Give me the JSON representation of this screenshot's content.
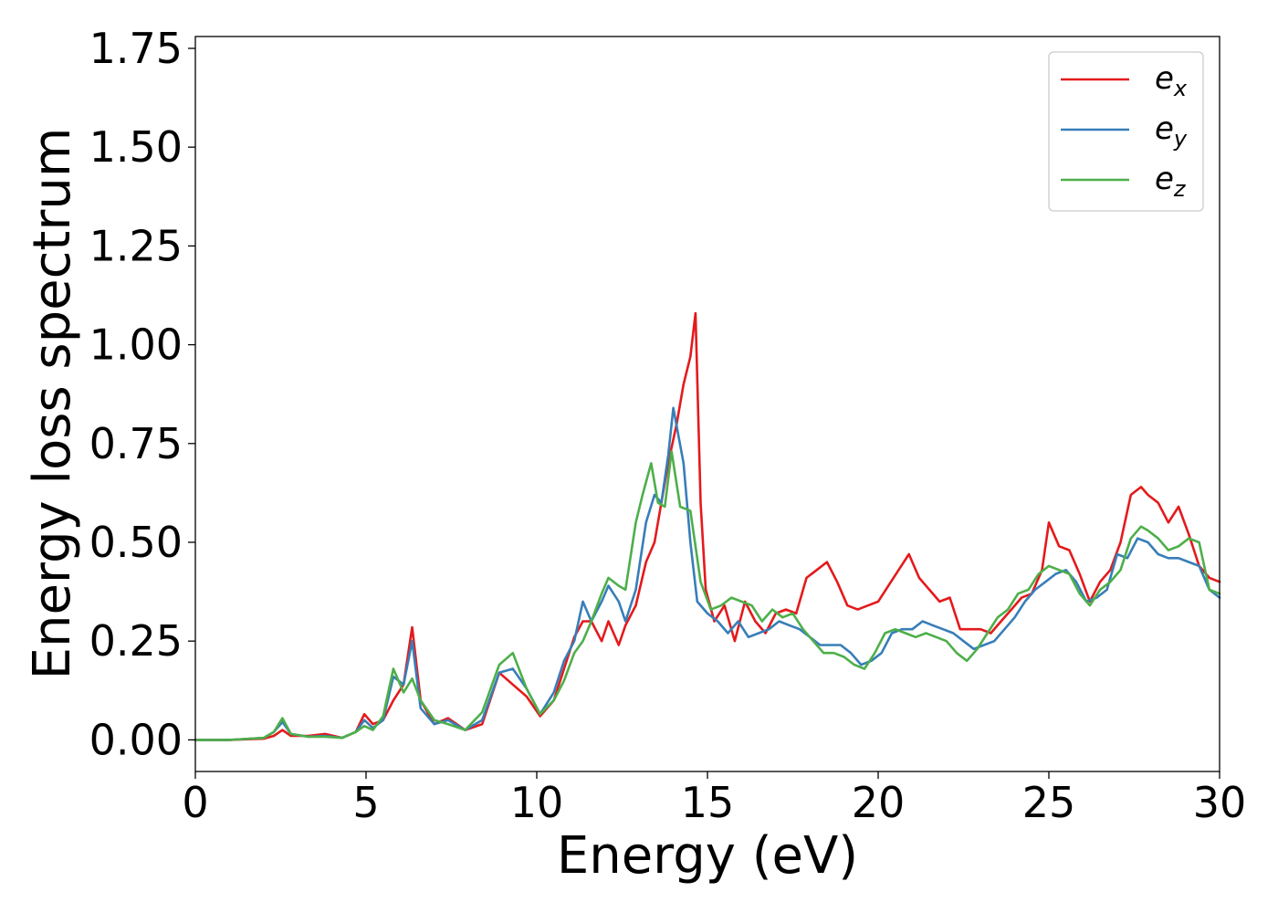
{
  "chart_data": {
    "type": "line",
    "xlabel": "Energy (eV)",
    "ylabel": "Energy loss spectrum",
    "xlim": [
      0,
      30
    ],
    "ylim": [
      -0.08,
      1.78
    ],
    "xticks": [
      0,
      5,
      10,
      15,
      20,
      25,
      30
    ],
    "xtick_labels": [
      "0",
      "5",
      "10",
      "15",
      "20",
      "25",
      "30"
    ],
    "yticks": [
      0.0,
      0.25,
      0.5,
      0.75,
      1.0,
      1.25,
      1.5,
      1.75
    ],
    "ytick_labels": [
      "0.00",
      "0.25",
      "0.50",
      "0.75",
      "1.00",
      "1.25",
      "1.50",
      "1.75"
    ],
    "grid": false,
    "legend_position": "top-right",
    "series": [
      {
        "name": "e",
        "subscript": "x",
        "color": "#e41a1c",
        "x": [
          0,
          1,
          2,
          2.3,
          2.55,
          2.8,
          3.3,
          3.8,
          4.3,
          4.7,
          4.95,
          5.2,
          5.5,
          5.8,
          6.1,
          6.35,
          6.6,
          7.0,
          7.4,
          7.9,
          8.4,
          8.9,
          9.3,
          9.7,
          10.1,
          10.5,
          10.8,
          11.1,
          11.35,
          11.6,
          11.9,
          12.1,
          12.4,
          12.6,
          12.9,
          13.2,
          13.45,
          13.65,
          13.85,
          14.1,
          14.3,
          14.5,
          14.65,
          14.8,
          14.95,
          15.2,
          15.5,
          15.8,
          16.1,
          16.4,
          16.7,
          17.0,
          17.3,
          17.6,
          17.9,
          18.2,
          18.5,
          18.8,
          19.1,
          19.4,
          19.7,
          20.0,
          20.3,
          20.6,
          20.9,
          21.2,
          21.5,
          21.8,
          22.1,
          22.4,
          22.7,
          23.0,
          23.3,
          23.6,
          23.9,
          24.2,
          24.5,
          24.8,
          25.0,
          25.3,
          25.6,
          25.9,
          26.2,
          26.5,
          26.8,
          27.1,
          27.4,
          27.7,
          27.9,
          28.2,
          28.5,
          28.8,
          29.1,
          29.4,
          29.7,
          30.0
        ],
        "y": [
          0,
          0,
          0.003,
          0.01,
          0.025,
          0.01,
          0.01,
          0.015,
          0.005,
          0.02,
          0.065,
          0.04,
          0.05,
          0.1,
          0.14,
          0.285,
          0.1,
          0.04,
          0.055,
          0.025,
          0.04,
          0.17,
          0.14,
          0.11,
          0.06,
          0.1,
          0.18,
          0.26,
          0.3,
          0.3,
          0.25,
          0.3,
          0.24,
          0.29,
          0.34,
          0.45,
          0.5,
          0.6,
          0.7,
          0.8,
          0.9,
          0.97,
          1.08,
          0.6,
          0.38,
          0.3,
          0.34,
          0.25,
          0.35,
          0.3,
          0.27,
          0.32,
          0.33,
          0.32,
          0.41,
          0.43,
          0.45,
          0.4,
          0.34,
          0.33,
          0.34,
          0.35,
          0.39,
          0.43,
          0.47,
          0.41,
          0.38,
          0.35,
          0.36,
          0.28,
          0.28,
          0.28,
          0.27,
          0.3,
          0.33,
          0.36,
          0.37,
          0.43,
          0.55,
          0.49,
          0.48,
          0.42,
          0.35,
          0.4,
          0.43,
          0.5,
          0.62,
          0.64,
          0.62,
          0.6,
          0.55,
          0.59,
          0.52,
          0.44,
          0.41,
          0.4
        ]
      },
      {
        "name": "e",
        "subscript": "y",
        "color": "#377eb8",
        "x": [
          0,
          1,
          2,
          2.3,
          2.55,
          2.8,
          3.3,
          3.8,
          4.3,
          4.7,
          4.95,
          5.2,
          5.5,
          5.8,
          6.1,
          6.35,
          6.6,
          7.0,
          7.4,
          7.9,
          8.4,
          8.9,
          9.3,
          9.7,
          10.1,
          10.5,
          10.8,
          11.1,
          11.35,
          11.6,
          11.9,
          12.1,
          12.4,
          12.6,
          12.9,
          13.2,
          13.45,
          13.65,
          13.85,
          14.0,
          14.3,
          14.5,
          14.7,
          15.0,
          15.3,
          15.6,
          15.9,
          16.2,
          16.5,
          16.8,
          17.1,
          17.4,
          17.7,
          18.0,
          18.3,
          18.6,
          18.9,
          19.2,
          19.5,
          19.8,
          20.1,
          20.4,
          20.7,
          21.0,
          21.3,
          21.6,
          21.9,
          22.2,
          22.5,
          22.8,
          23.1,
          23.4,
          23.7,
          24.0,
          24.3,
          24.6,
          24.9,
          25.2,
          25.5,
          25.8,
          26.1,
          26.4,
          26.7,
          27.0,
          27.3,
          27.6,
          27.9,
          28.2,
          28.5,
          28.8,
          29.1,
          29.4,
          29.7,
          30.0
        ],
        "y": [
          0,
          0,
          0.005,
          0.02,
          0.045,
          0.015,
          0.008,
          0.01,
          0.005,
          0.02,
          0.05,
          0.03,
          0.05,
          0.16,
          0.14,
          0.25,
          0.08,
          0.04,
          0.05,
          0.025,
          0.05,
          0.17,
          0.18,
          0.13,
          0.065,
          0.12,
          0.2,
          0.25,
          0.35,
          0.3,
          0.35,
          0.39,
          0.35,
          0.3,
          0.38,
          0.55,
          0.62,
          0.6,
          0.72,
          0.84,
          0.7,
          0.5,
          0.35,
          0.32,
          0.3,
          0.27,
          0.3,
          0.26,
          0.27,
          0.28,
          0.3,
          0.29,
          0.28,
          0.26,
          0.24,
          0.24,
          0.24,
          0.22,
          0.19,
          0.2,
          0.22,
          0.27,
          0.28,
          0.28,
          0.3,
          0.29,
          0.28,
          0.27,
          0.25,
          0.23,
          0.24,
          0.25,
          0.28,
          0.31,
          0.35,
          0.38,
          0.4,
          0.42,
          0.43,
          0.4,
          0.35,
          0.36,
          0.38,
          0.47,
          0.46,
          0.51,
          0.5,
          0.47,
          0.46,
          0.46,
          0.45,
          0.44,
          0.38,
          0.36
        ]
      },
      {
        "name": "e",
        "subscript": "z",
        "color": "#4daf4a",
        "x": [
          0,
          1,
          2,
          2.3,
          2.55,
          2.8,
          3.3,
          3.8,
          4.3,
          4.7,
          4.95,
          5.2,
          5.5,
          5.8,
          6.1,
          6.35,
          6.6,
          7.0,
          7.4,
          7.9,
          8.4,
          8.9,
          9.3,
          9.7,
          10.1,
          10.5,
          10.8,
          11.1,
          11.35,
          11.6,
          11.9,
          12.1,
          12.4,
          12.6,
          12.9,
          13.1,
          13.35,
          13.55,
          13.75,
          13.95,
          14.2,
          14.5,
          14.8,
          15.1,
          15.4,
          15.7,
          16.0,
          16.3,
          16.6,
          16.9,
          17.2,
          17.5,
          17.8,
          18.1,
          18.4,
          18.7,
          19.0,
          19.3,
          19.6,
          19.9,
          20.2,
          20.5,
          20.8,
          21.1,
          21.4,
          21.7,
          22.0,
          22.3,
          22.6,
          22.9,
          23.2,
          23.5,
          23.8,
          24.1,
          24.4,
          24.7,
          25.0,
          25.3,
          25.6,
          25.9,
          26.2,
          26.5,
          26.8,
          27.1,
          27.4,
          27.7,
          27.9,
          28.2,
          28.5,
          28.8,
          29.1,
          29.4,
          29.7,
          30.0
        ],
        "y": [
          0,
          0,
          0.005,
          0.02,
          0.055,
          0.015,
          0.008,
          0.008,
          0.005,
          0.02,
          0.035,
          0.025,
          0.06,
          0.18,
          0.12,
          0.155,
          0.1,
          0.05,
          0.04,
          0.025,
          0.07,
          0.19,
          0.22,
          0.13,
          0.065,
          0.1,
          0.15,
          0.22,
          0.25,
          0.3,
          0.37,
          0.41,
          0.39,
          0.38,
          0.55,
          0.62,
          0.7,
          0.6,
          0.59,
          0.73,
          0.59,
          0.58,
          0.4,
          0.33,
          0.34,
          0.36,
          0.35,
          0.34,
          0.3,
          0.33,
          0.31,
          0.32,
          0.28,
          0.25,
          0.22,
          0.22,
          0.21,
          0.19,
          0.18,
          0.22,
          0.27,
          0.28,
          0.27,
          0.26,
          0.27,
          0.26,
          0.25,
          0.22,
          0.2,
          0.23,
          0.27,
          0.31,
          0.33,
          0.37,
          0.38,
          0.42,
          0.44,
          0.43,
          0.42,
          0.37,
          0.34,
          0.38,
          0.4,
          0.43,
          0.51,
          0.54,
          0.53,
          0.51,
          0.48,
          0.49,
          0.51,
          0.5,
          0.38,
          0.37
        ]
      }
    ]
  }
}
